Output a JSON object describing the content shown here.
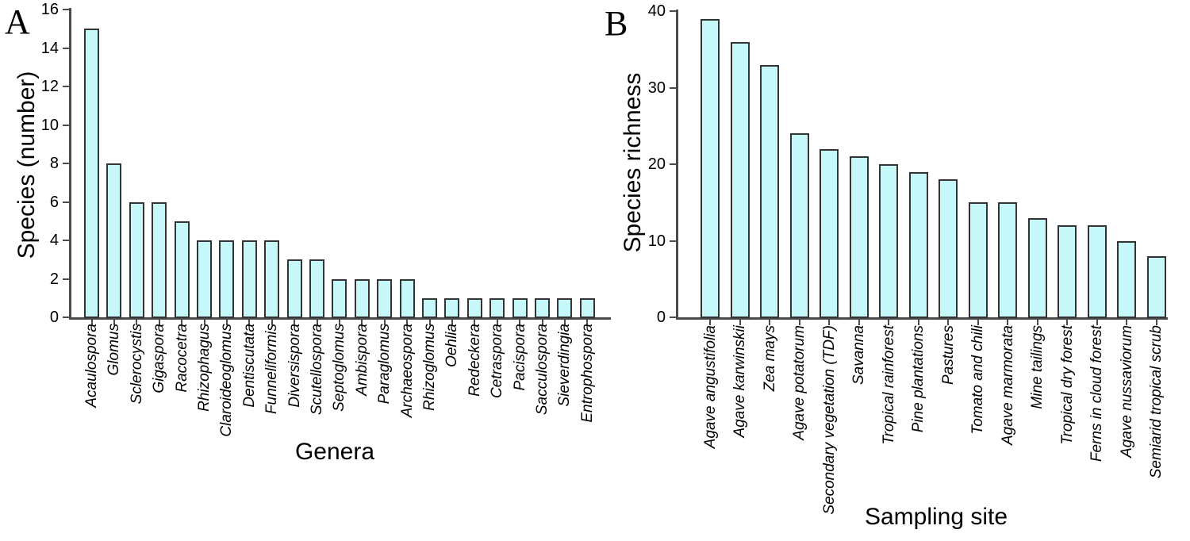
{
  "figure": {
    "background": "#ffffff",
    "bar_fill": "#c6f8fa",
    "bar_edge": "#333333",
    "axis_color": "#4a4a4a",
    "text_color": "#000000"
  },
  "chart_data": [
    {
      "type": "bar",
      "panel_letter": "A",
      "xlabel": "Genera",
      "ylabel": "Species (number)",
      "ylim": [
        0,
        16
      ],
      "yticks": [
        0,
        2,
        4,
        6,
        8,
        10,
        12,
        14,
        16
      ],
      "grid": false,
      "legend": "none",
      "categories_style": "italic",
      "categories": [
        "Acaulospora",
        "Glomus",
        "Sclerocystis",
        "Gigaspora",
        "Racocetra",
        "Rhizophagus",
        "Claroideoglomus",
        "Dentiscutata",
        "Funneliformis",
        "Diversispora",
        "Scutellospora",
        "Septoglomus",
        "Ambispora",
        "Paraglomus",
        "Archaeospora",
        "Rhizoglomus",
        "Oehlia",
        "Redeckera",
        "Cetraspora",
        "Pacispora",
        "Sacculospora",
        "Sieverdingia",
        "Entrophospora"
      ],
      "values": [
        15,
        8,
        6,
        6,
        5,
        4,
        4,
        4,
        4,
        3,
        3,
        2,
        2,
        2,
        2,
        1,
        1,
        1,
        1,
        1,
        1,
        1,
        1
      ]
    },
    {
      "type": "bar",
      "panel_letter": "B",
      "xlabel": "Sampling site",
      "ylabel": "Species richness",
      "ylim": [
        0,
        40
      ],
      "yticks": [
        0,
        10,
        20,
        30,
        40
      ],
      "grid": false,
      "legend": "none",
      "categories_style": "italic",
      "categories": [
        "Agave angustifolia",
        "Agave karwinskii",
        "Zea mays",
        "Agave potatorum",
        "Secondary vegetation (TDF)",
        "Savanna",
        "Tropical rainforest",
        "Pine plantations",
        "Pastures",
        "Tomato and chili",
        "Agave marmorata",
        "Mine tailings",
        "Tropical dry forest",
        "Ferns in cloud forest",
        "Agave nussaviorum",
        "Semiarid tropical scrub"
      ],
      "values": [
        39,
        36,
        33,
        24,
        22,
        21,
        20,
        19,
        18,
        15,
        15,
        13,
        12,
        12,
        10,
        8
      ]
    }
  ]
}
